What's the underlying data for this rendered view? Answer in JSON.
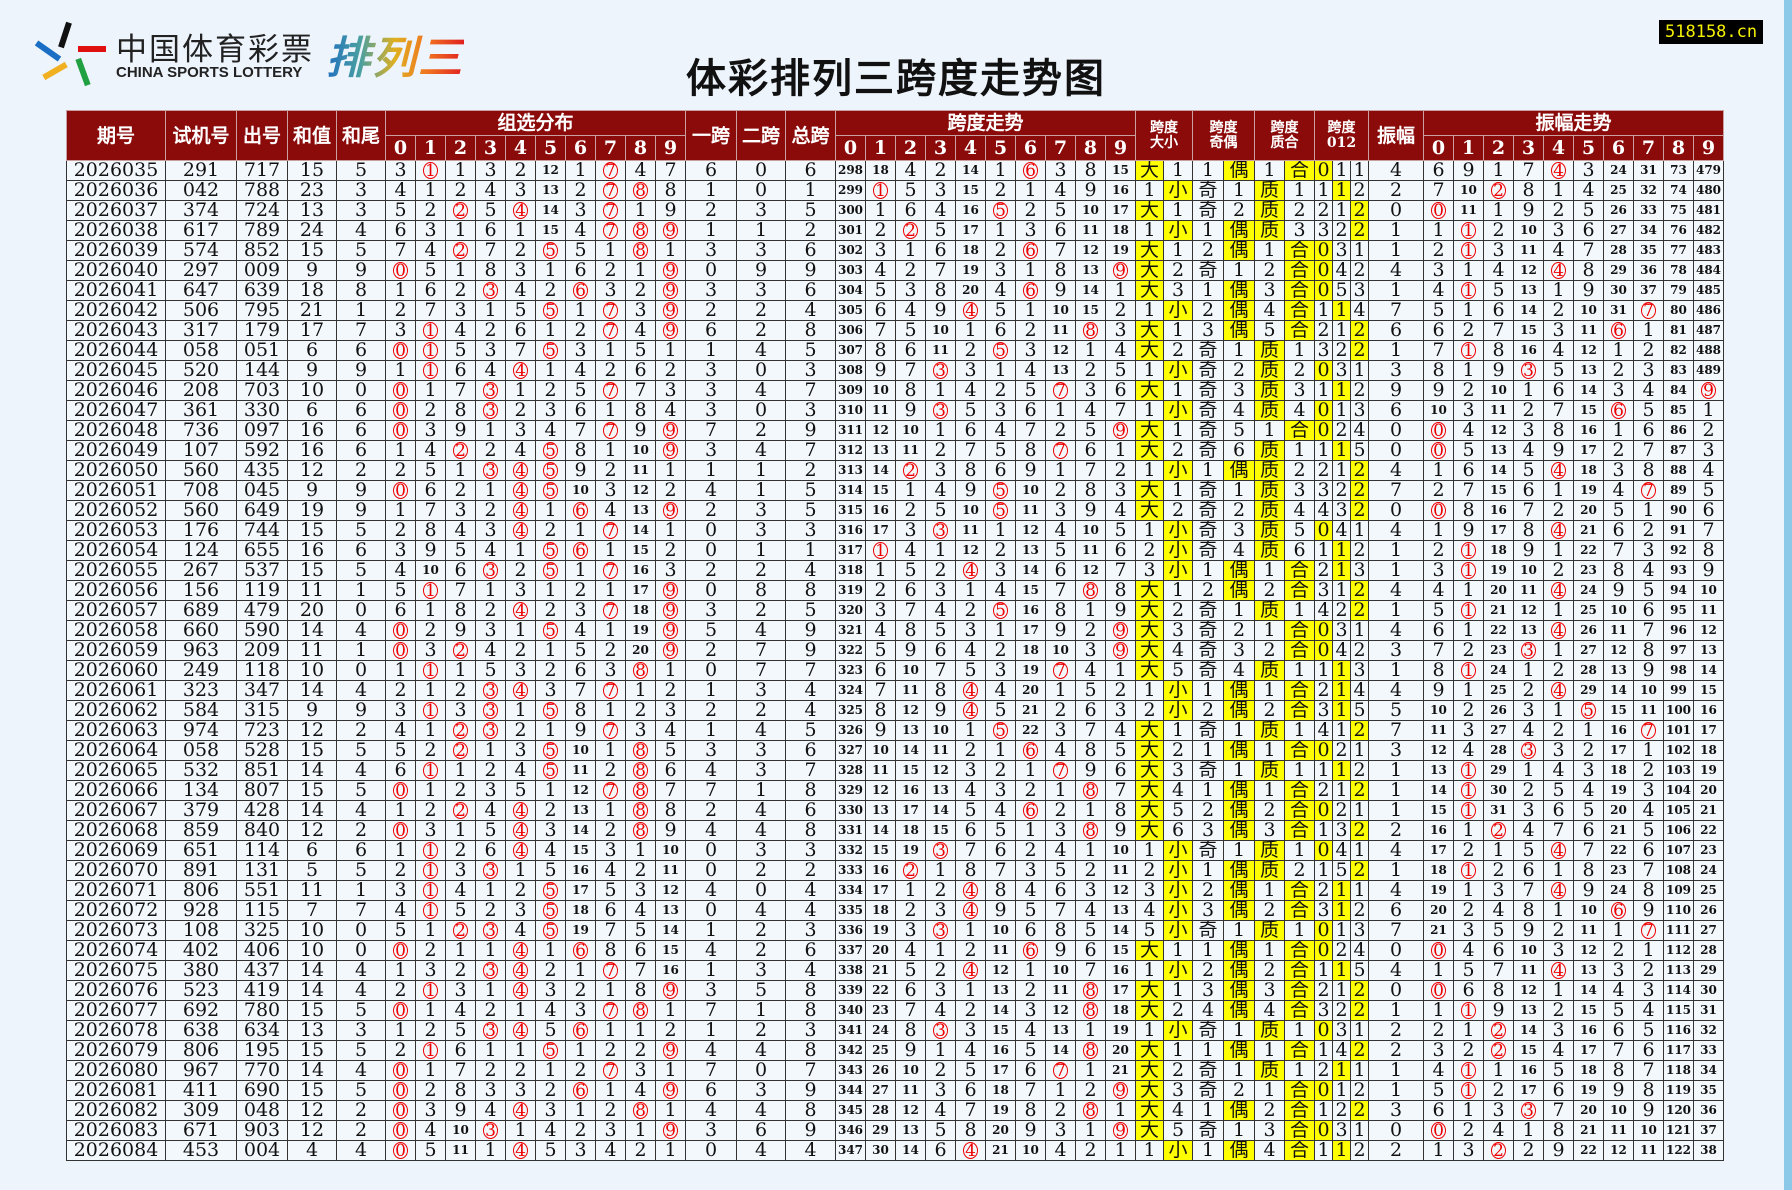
{
  "logo": {
    "cn": "中国体育彩票",
    "en": "CHINA SPORTS LOTTERY",
    "game": "排列三"
  },
  "title": "体彩排列三跨度走势图",
  "site": "518158.cn",
  "header": {
    "issue": "期号",
    "test": "试机号",
    "draw": "出号",
    "sum": "和值",
    "tail": "和尾",
    "zuxuan": "组选分布",
    "span1": "一跨",
    "span2": "二跨",
    "span": "总跨",
    "span_trend": "跨度走势",
    "size": "跨度大小",
    "parity": "跨度奇偶",
    "prime": "跨度质合",
    "mod3": "跨度012",
    "amp": "振幅",
    "amp_trend": "振幅走势",
    "digits": [
      "0",
      "1",
      "2",
      "3",
      "4",
      "5",
      "6",
      "7",
      "8",
      "9"
    ]
  },
  "labels": {
    "size": [
      "大",
      "小"
    ],
    "parity": [
      "奇",
      "偶"
    ],
    "prime": [
      "质",
      "合"
    ],
    "mod3": [
      "0",
      "1",
      "2"
    ]
  },
  "colors": {
    "header_bg": "#8b0a0a",
    "hit_circle": "#e00000",
    "highlight": "#ffff00",
    "cell_bg": "#f3f8fd"
  },
  "first_row_omission": {
    "zuxuan": [
      3,
      null,
      1,
      3,
      2,
      12,
      1,
      null,
      4,
      7
    ],
    "span_trend": [
      298,
      18,
      4,
      2,
      14,
      1,
      null,
      3,
      8,
      15
    ],
    "size": [
      null,
      1
    ],
    "parity": [
      1,
      null
    ],
    "prime": [
      1,
      null
    ],
    "mod3": [
      null,
      1,
      1
    ],
    "amp_trend": [
      6,
      9,
      1,
      7,
      null,
      3,
      24,
      31,
      73,
      479
    ]
  },
  "rows": [
    [
      "2026035",
      "291",
      "717",
      "15",
      "5",
      "6",
      "0",
      "6",
      "4"
    ],
    [
      "2026036",
      "042",
      "788",
      "23",
      "3",
      "1",
      "0",
      "1",
      "2"
    ],
    [
      "2026037",
      "374",
      "724",
      "13",
      "3",
      "2",
      "3",
      "5",
      "0"
    ],
    [
      "2026038",
      "617",
      "789",
      "24",
      "4",
      "1",
      "1",
      "2",
      "1"
    ],
    [
      "2026039",
      "574",
      "852",
      "15",
      "5",
      "3",
      "3",
      "6",
      "1"
    ],
    [
      "2026040",
      "297",
      "009",
      "9",
      "9",
      "0",
      "9",
      "9",
      "4"
    ],
    [
      "2026041",
      "647",
      "639",
      "18",
      "8",
      "3",
      "3",
      "6",
      "1"
    ],
    [
      "2026042",
      "506",
      "795",
      "21",
      "1",
      "2",
      "2",
      "4",
      "7"
    ],
    [
      "2026043",
      "317",
      "179",
      "17",
      "7",
      "6",
      "2",
      "8",
      "6"
    ],
    [
      "2026044",
      "058",
      "051",
      "6",
      "6",
      "1",
      "4",
      "5",
      "1"
    ],
    [
      "2026045",
      "520",
      "144",
      "9",
      "9",
      "3",
      "0",
      "3",
      "3"
    ],
    [
      "2026046",
      "208",
      "703",
      "10",
      "0",
      "3",
      "4",
      "7",
      "9"
    ],
    [
      "2026047",
      "361",
      "330",
      "6",
      "6",
      "3",
      "0",
      "3",
      "6"
    ],
    [
      "2026048",
      "736",
      "097",
      "16",
      "6",
      "7",
      "2",
      "9",
      "0"
    ],
    [
      "2026049",
      "107",
      "592",
      "16",
      "6",
      "3",
      "4",
      "7",
      "0"
    ],
    [
      "2026050",
      "560",
      "435",
      "12",
      "2",
      "1",
      "1",
      "2",
      "4"
    ],
    [
      "2026051",
      "708",
      "045",
      "9",
      "9",
      "4",
      "1",
      "5",
      "7"
    ],
    [
      "2026052",
      "560",
      "649",
      "19",
      "9",
      "2",
      "3",
      "5",
      "0"
    ],
    [
      "2026053",
      "176",
      "744",
      "15",
      "5",
      "0",
      "3",
      "3",
      "4"
    ],
    [
      "2026054",
      "124",
      "655",
      "16",
      "6",
      "0",
      "1",
      "1",
      "1"
    ],
    [
      "2026055",
      "267",
      "537",
      "15",
      "5",
      "2",
      "2",
      "4",
      "1"
    ],
    [
      "2026056",
      "156",
      "119",
      "11",
      "1",
      "0",
      "8",
      "8",
      "4"
    ],
    [
      "2026057",
      "689",
      "479",
      "20",
      "0",
      "3",
      "2",
      "5",
      "1"
    ],
    [
      "2026058",
      "660",
      "590",
      "14",
      "4",
      "5",
      "4",
      "9",
      "4"
    ],
    [
      "2026059",
      "963",
      "209",
      "11",
      "1",
      "2",
      "7",
      "9",
      "3"
    ],
    [
      "2026060",
      "249",
      "118",
      "10",
      "0",
      "0",
      "7",
      "7",
      "1"
    ],
    [
      "2026061",
      "323",
      "347",
      "14",
      "4",
      "1",
      "3",
      "4",
      "4"
    ],
    [
      "2026062",
      "584",
      "315",
      "9",
      "9",
      "2",
      "2",
      "4",
      "5"
    ],
    [
      "2026063",
      "974",
      "723",
      "12",
      "2",
      "1",
      "4",
      "5",
      "7"
    ],
    [
      "2026064",
      "058",
      "528",
      "15",
      "5",
      "3",
      "3",
      "6",
      "3"
    ],
    [
      "2026065",
      "532",
      "851",
      "14",
      "4",
      "4",
      "3",
      "7",
      "1"
    ],
    [
      "2026066",
      "134",
      "807",
      "15",
      "5",
      "7",
      "1",
      "8",
      "1"
    ],
    [
      "2026067",
      "379",
      "428",
      "14",
      "4",
      "2",
      "4",
      "6",
      "1"
    ],
    [
      "2026068",
      "859",
      "840",
      "12",
      "2",
      "4",
      "4",
      "8",
      "2"
    ],
    [
      "2026069",
      "651",
      "114",
      "6",
      "6",
      "0",
      "3",
      "3",
      "4"
    ],
    [
      "2026070",
      "891",
      "131",
      "5",
      "5",
      "0",
      "2",
      "2",
      "1"
    ],
    [
      "2026071",
      "806",
      "551",
      "11",
      "1",
      "4",
      "0",
      "4",
      "4"
    ],
    [
      "2026072",
      "928",
      "115",
      "7",
      "7",
      "0",
      "4",
      "4",
      "6"
    ],
    [
      "2026073",
      "108",
      "325",
      "10",
      "0",
      "1",
      "2",
      "3",
      "7"
    ],
    [
      "2026074",
      "402",
      "406",
      "10",
      "0",
      "4",
      "2",
      "6",
      "0"
    ],
    [
      "2026075",
      "380",
      "437",
      "14",
      "4",
      "1",
      "3",
      "4",
      "4"
    ],
    [
      "2026076",
      "523",
      "419",
      "14",
      "4",
      "3",
      "5",
      "8",
      "0"
    ],
    [
      "2026077",
      "692",
      "780",
      "15",
      "5",
      "7",
      "1",
      "8",
      "1"
    ],
    [
      "2026078",
      "638",
      "634",
      "13",
      "3",
      "1",
      "2",
      "3",
      "2"
    ],
    [
      "2026079",
      "806",
      "195",
      "15",
      "5",
      "4",
      "4",
      "8",
      "2"
    ],
    [
      "2026080",
      "967",
      "770",
      "14",
      "4",
      "7",
      "0",
      "7",
      "1"
    ],
    [
      "2026081",
      "411",
      "690",
      "15",
      "5",
      "6",
      "3",
      "9",
      "1"
    ],
    [
      "2026082",
      "309",
      "048",
      "12",
      "2",
      "4",
      "4",
      "8",
      "3"
    ],
    [
      "2026083",
      "671",
      "903",
      "12",
      "2",
      "3",
      "6",
      "9",
      "0"
    ],
    [
      "2026084",
      "453",
      "004",
      "4",
      "4",
      "0",
      "4",
      "4",
      "2"
    ]
  ]
}
